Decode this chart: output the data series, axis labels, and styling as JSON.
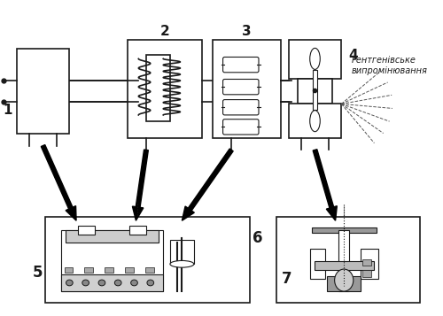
{
  "bg_color": "#ffffff",
  "line_color": "#1a1a1a",
  "figsize": [
    5.0,
    3.57
  ],
  "dpi": 100,
  "label1": "1",
  "label2": "2",
  "label3": "3",
  "label4": "4",
  "label5": "5",
  "label6": "6",
  "label7": "7",
  "label_radiation": "Рентгенівське\nвипромінювання"
}
